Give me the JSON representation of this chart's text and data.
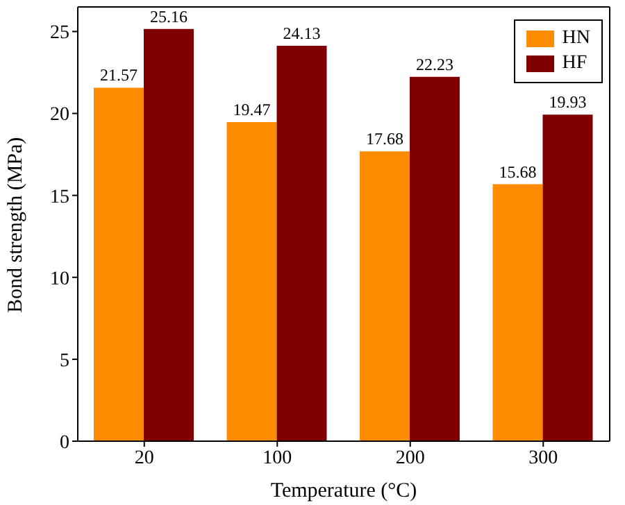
{
  "chart_data": {
    "type": "bar",
    "xlabel": "Temperature (°C)",
    "ylabel": "Bond strength (MPa)",
    "categories": [
      "20",
      "100",
      "200",
      "300"
    ],
    "series": [
      {
        "name": "HN",
        "color": "#ff8c00",
        "values": [
          21.57,
          19.47,
          17.68,
          15.68
        ]
      },
      {
        "name": "HF",
        "color": "#800000",
        "values": [
          25.16,
          24.13,
          22.23,
          19.93
        ]
      }
    ],
    "ylim": [
      0,
      26.5
    ],
    "yticks": [
      0,
      5,
      10,
      15,
      20,
      25
    ],
    "data_labels": true,
    "legend": "top right",
    "grid": false
  }
}
